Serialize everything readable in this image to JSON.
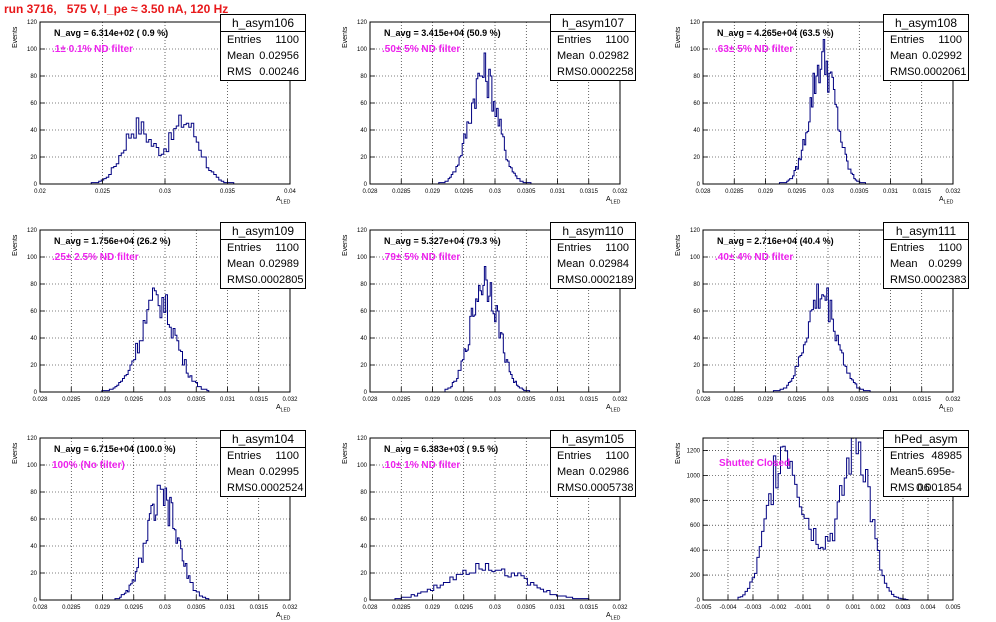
{
  "page": {
    "title": "run 3716,   575 V, I_pe ≈ 3.50 nA, 120 Hz"
  },
  "chart_data": [
    {
      "type": "bar",
      "name": "h_asym106",
      "entries": "1100",
      "mean": "0.02956",
      "rms": "0.00246",
      "navg": "N_avg = 6.314e+02 ( 0.9 %)",
      "filter": ".1± 0.1% ND filter",
      "ylabel": "Events",
      "xlabel": "A",
      "xlabel_sub": "LED",
      "xlim": [
        0.02,
        0.04
      ],
      "ylim": [
        0,
        120
      ],
      "xticks": [
        0.02,
        0.025,
        0.03,
        0.035,
        0.04
      ],
      "xtick_labels": [
        "0.02",
        "0.025",
        "0.03",
        "0.035",
        "0.04"
      ],
      "yticks": [
        0,
        20,
        40,
        60,
        80,
        100,
        120
      ],
      "ytick_labels": [
        "0",
        "20",
        "40",
        "60",
        "80",
        "100",
        "120"
      ],
      "peaks": [
        {
          "mu": 0.0278,
          "sigma": 0.0012,
          "h": 42
        },
        {
          "mu": 0.0316,
          "sigma": 0.0012,
          "h": 46
        }
      ],
      "range": [
        0.0235,
        0.0355
      ],
      "nbins": 60
    },
    {
      "type": "bar",
      "name": "h_asym107",
      "entries": "1100",
      "mean": "0.02982",
      "rms": "0.0002258",
      "navg": "N_avg = 3.415e+04 (50.9 %)",
      "filter": ".50± 5% ND filter",
      "ylabel": "Events",
      "xlabel": "A",
      "xlabel_sub": "LED",
      "xlim": [
        0.028,
        0.032
      ],
      "ylim": [
        0,
        120
      ],
      "xticks": [
        0.028,
        0.0285,
        0.029,
        0.0295,
        0.03,
        0.0305,
        0.031,
        0.0315,
        0.032
      ],
      "xtick_labels": [
        "0.028",
        "0.0285",
        "0.029",
        "0.0295",
        "0.03",
        "0.0305",
        "0.031",
        "0.0315",
        "0.032"
      ],
      "yticks": [
        0,
        20,
        40,
        60,
        80,
        100,
        120
      ],
      "ytick_labels": [
        "0",
        "20",
        "40",
        "60",
        "80",
        "100",
        "120"
      ],
      "peaks": [
        {
          "mu": 0.02982,
          "sigma": 0.000226,
          "h": 82
        }
      ],
      "range": [
        0.0291,
        0.0306
      ],
      "nbins": 60
    },
    {
      "type": "bar",
      "name": "h_asym108",
      "entries": "1100",
      "mean": "0.02992",
      "rms": "0.0002061",
      "navg": "N_avg = 4.265e+04 (63.5 %)",
      "filter": ".63± 5% ND filter",
      "ylabel": "Events",
      "xlabel": "A",
      "xlabel_sub": "LED",
      "xlim": [
        0.028,
        0.032
      ],
      "ylim": [
        0,
        120
      ],
      "xticks": [
        0.028,
        0.0285,
        0.029,
        0.0295,
        0.03,
        0.0305,
        0.031,
        0.0315,
        0.032
      ],
      "xtick_labels": [
        "0.028",
        "0.0285",
        "0.029",
        "0.0295",
        "0.03",
        "0.0305",
        "0.031",
        "0.0315",
        "0.032"
      ],
      "yticks": [
        0,
        20,
        40,
        60,
        80,
        100,
        120
      ],
      "ytick_labels": [
        "0",
        "20",
        "40",
        "60",
        "80",
        "100",
        "120"
      ],
      "peaks": [
        {
          "mu": 0.02992,
          "sigma": 0.000206,
          "h": 92
        }
      ],
      "range": [
        0.0292,
        0.0306
      ],
      "nbins": 60
    },
    {
      "type": "bar",
      "name": "h_asym109",
      "entries": "1100",
      "mean": "0.02989",
      "rms": "0.0002805",
      "navg": "N_avg = 1.756e+04 (26.2 %)",
      "filter": ".25± 2.5% ND filter",
      "ylabel": "Events",
      "xlabel": "A",
      "xlabel_sub": "LED",
      "xlim": [
        0.028,
        0.032
      ],
      "ylim": [
        0,
        120
      ],
      "xticks": [
        0.028,
        0.0285,
        0.029,
        0.0295,
        0.03,
        0.0305,
        0.031,
        0.0315,
        0.032
      ],
      "xtick_labels": [
        "0.028",
        "0.0285",
        "0.029",
        "0.0295",
        "0.03",
        "0.0305",
        "0.031",
        "0.0315",
        "0.032"
      ],
      "yticks": [
        0,
        20,
        40,
        60,
        80,
        100,
        120
      ],
      "ytick_labels": [
        "0",
        "20",
        "40",
        "60",
        "80",
        "100",
        "120"
      ],
      "peaks": [
        {
          "mu": 0.02989,
          "sigma": 0.00028,
          "h": 68
        }
      ],
      "range": [
        0.0289,
        0.0307
      ],
      "nbins": 60
    },
    {
      "type": "bar",
      "name": "h_asym110",
      "entries": "1100",
      "mean": "0.02984",
      "rms": "0.0002189",
      "navg": "N_avg = 5.327e+04 (79.3 %)",
      "filter": ".79± 5% ND filter",
      "ylabel": "Events",
      "xlabel": "A",
      "xlabel_sub": "LED",
      "xlim": [
        0.028,
        0.032
      ],
      "ylim": [
        0,
        120
      ],
      "xticks": [
        0.028,
        0.0285,
        0.029,
        0.0295,
        0.03,
        0.0305,
        0.031,
        0.0315,
        0.032
      ],
      "xtick_labels": [
        "0.028",
        "0.0285",
        "0.029",
        "0.0295",
        "0.03",
        "0.0305",
        "0.031",
        "0.0315",
        "0.032"
      ],
      "yticks": [
        0,
        20,
        40,
        60,
        80,
        100,
        120
      ],
      "ytick_labels": [
        "0",
        "20",
        "40",
        "60",
        "80",
        "100",
        "120"
      ],
      "peaks": [
        {
          "mu": 0.02984,
          "sigma": 0.000219,
          "h": 84
        }
      ],
      "range": [
        0.0292,
        0.0306
      ],
      "nbins": 60
    },
    {
      "type": "bar",
      "name": "h_asym111",
      "entries": "1100",
      "mean": "0.0299",
      "rms": "0.0002383",
      "navg": "N_avg = 2.716e+04 (40.4 %)",
      "filter": ".40± 4% ND filter",
      "ylabel": "Events",
      "xlabel": "A",
      "xlabel_sub": "LED",
      "xlim": [
        0.028,
        0.032
      ],
      "ylim": [
        0,
        120
      ],
      "xticks": [
        0.028,
        0.0285,
        0.029,
        0.0295,
        0.03,
        0.0305,
        0.031,
        0.0315,
        0.032
      ],
      "xtick_labels": [
        "0.028",
        "0.0285",
        "0.029",
        "0.0295",
        "0.03",
        "0.0305",
        "0.031",
        "0.0315",
        "0.032"
      ],
      "yticks": [
        0,
        20,
        40,
        60,
        80,
        100,
        120
      ],
      "ytick_labels": [
        "0",
        "20",
        "40",
        "60",
        "80",
        "100",
        "120"
      ],
      "peaks": [
        {
          "mu": 0.0299,
          "sigma": 0.000238,
          "h": 72
        }
      ],
      "range": [
        0.0291,
        0.0307
      ],
      "nbins": 60
    },
    {
      "type": "bar",
      "name": "h_asym104",
      "entries": "1100",
      "mean": "0.02995",
      "rms": "0.0002524",
      "navg": "N_avg = 6.715e+04 (100.0 %)",
      "filter": "100% (No filter)",
      "ylabel": "Events",
      "xlabel": "A",
      "xlabel_sub": "LED",
      "xlim": [
        0.028,
        0.032
      ],
      "ylim": [
        0,
        120
      ],
      "xticks": [
        0.028,
        0.0285,
        0.029,
        0.0295,
        0.03,
        0.0305,
        0.031,
        0.0315,
        0.032
      ],
      "xtick_labels": [
        "0.028",
        "0.0285",
        "0.029",
        "0.0295",
        "0.03",
        "0.0305",
        "0.031",
        "0.0315",
        "0.032"
      ],
      "yticks": [
        0,
        20,
        40,
        60,
        80,
        100,
        120
      ],
      "ytick_labels": [
        "0",
        "20",
        "40",
        "60",
        "80",
        "100",
        "120"
      ],
      "peaks": [
        {
          "mu": 0.02995,
          "sigma": 0.000252,
          "h": 74
        }
      ],
      "range": [
        0.0292,
        0.0307
      ],
      "nbins": 60
    },
    {
      "type": "bar",
      "name": "h_asym105",
      "entries": "1100",
      "mean": "0.02986",
      "rms": "0.0005738",
      "navg": "N_avg = 6.383e+03 ( 9.5 %)",
      "filter": ".10± 1% ND filter",
      "ylabel": "Events",
      "xlabel": "A",
      "xlabel_sub": "LED",
      "xlim": [
        0.028,
        0.032
      ],
      "ylim": [
        0,
        120
      ],
      "xticks": [
        0.028,
        0.0285,
        0.029,
        0.0295,
        0.03,
        0.0305,
        0.031,
        0.0315,
        0.032
      ],
      "xtick_labels": [
        "0.028",
        "0.0285",
        "0.029",
        "0.0295",
        "0.03",
        "0.0305",
        "0.031",
        "0.0315",
        "0.032"
      ],
      "yticks": [
        0,
        20,
        40,
        60,
        80,
        100,
        120
      ],
      "ytick_labels": [
        "0",
        "20",
        "40",
        "60",
        "80",
        "100",
        "120"
      ],
      "peaks": [
        {
          "mu": 0.02986,
          "sigma": 0.00057,
          "h": 26
        }
      ],
      "range": [
        0.0284,
        0.0315
      ],
      "nbins": 60
    },
    {
      "type": "bar",
      "name": "hPed_asym",
      "entries": "48985",
      "mean": "5.695e-06",
      "rms": "0.001854",
      "navg": "",
      "filter": "Shutter Closed",
      "ylabel": "Events",
      "xlabel": "",
      "xlabel_sub": "",
      "xlim": [
        -0.005,
        0.005
      ],
      "ylim": [
        0,
        1300
      ],
      "xticks": [
        -0.005,
        -0.004,
        -0.003,
        -0.002,
        -0.001,
        0,
        0.001,
        0.002,
        0.003,
        0.004,
        0.005
      ],
      "xtick_labels": [
        "-0.005",
        "-0.004",
        "-0.003",
        "-0.002",
        "-0.001",
        "0",
        "0.001",
        "0.002",
        "0.003",
        "0.004",
        "0.005"
      ],
      "yticks": [
        0,
        200,
        400,
        600,
        800,
        1000,
        1200
      ],
      "ytick_labels": [
        "0",
        "200",
        "400",
        "600",
        "800",
        "1000",
        "1200"
      ],
      "peaks": [
        {
          "mu": -0.0018,
          "sigma": 0.0006,
          "h": 1100
        },
        {
          "mu": 0.0012,
          "sigma": 0.0005,
          "h": 1100
        },
        {
          "mu": -0.0002,
          "sigma": 0.0011,
          "h": 430
        }
      ],
      "range": [
        -0.0036,
        0.0032
      ],
      "nbins": 72
    }
  ]
}
